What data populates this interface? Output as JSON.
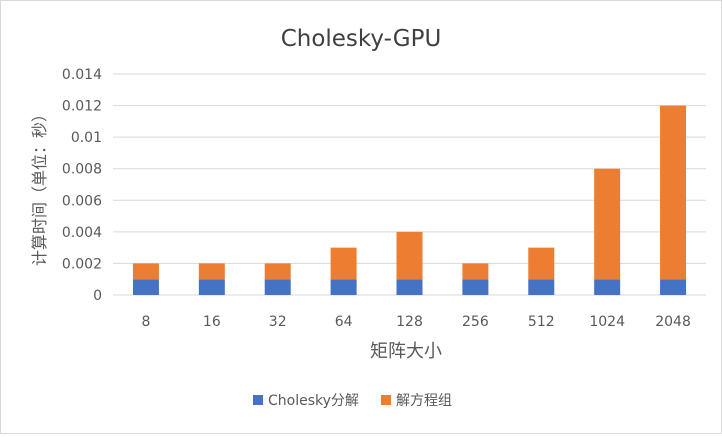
{
  "chart_data": {
    "type": "bar",
    "stacked": true,
    "title": "Cholesky-GPU",
    "xlabel": "矩阵大小",
    "ylabel": "计算时间（单位：秒）",
    "categories": [
      "8",
      "16",
      "32",
      "64",
      "128",
      "256",
      "512",
      "1024",
      "2048"
    ],
    "series": [
      {
        "name": "Cholesky分解",
        "color": "#4472c4",
        "values": [
          0.001,
          0.001,
          0.001,
          0.001,
          0.001,
          0.001,
          0.001,
          0.001,
          0.001
        ]
      },
      {
        "name": "解方程组",
        "color": "#ed7d31",
        "values": [
          0.001,
          0.001,
          0.001,
          0.002,
          0.003,
          0.001,
          0.002,
          0.007,
          0.011
        ]
      }
    ],
    "ylim": [
      0,
      0.014
    ],
    "yticks": [
      "0",
      "0.002",
      "0.004",
      "0.006",
      "0.008",
      "0.01",
      "0.012",
      "0.014"
    ],
    "grid": true,
    "legend_position": "bottom"
  }
}
